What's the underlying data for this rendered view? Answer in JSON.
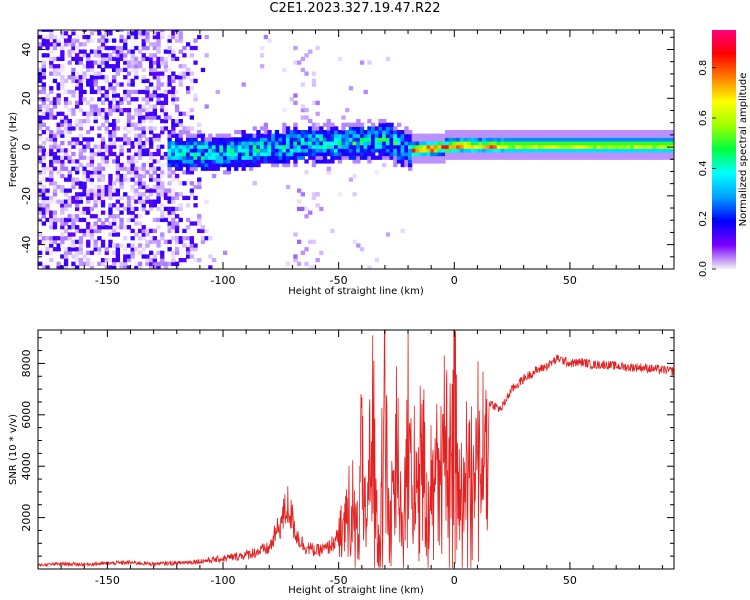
{
  "title": "C2E1.2023.327.19.47.R22",
  "chart_data": [
    {
      "type": "heatmap",
      "xlabel": "Height of straight line (km)",
      "ylabel": "Frequency (Hz)",
      "xlim": [
        -180,
        95
      ],
      "ylim": [
        -50,
        48
      ],
      "xticks": [
        -150,
        -100,
        -50,
        0,
        50
      ],
      "yticks": [
        -40,
        -20,
        0,
        20,
        40
      ],
      "colorbar": {
        "label": "Normalized spectral amplitude",
        "range": [
          0.0,
          0.95
        ],
        "ticks": [
          "0.0",
          "0.2",
          "0.4",
          "0.6",
          "0.8"
        ],
        "colors": [
          "#f2f2f2",
          "#7a00ff",
          "#0000ff",
          "#00a0ff",
          "#00ffff",
          "#00ff40",
          "#a0ff00",
          "#ffff00",
          "#ff8000",
          "#ff0000",
          "#ff0080"
        ]
      },
      "features": {
        "noise_region_x": [
          -180,
          -110
        ],
        "vertical_streak_x": [
          -70,
          -60
        ],
        "signal_start_x": -125,
        "signal_center_hz": [
          {
            "x": -125,
            "y": -3
          },
          {
            "x": -100,
            "y": -3
          },
          {
            "x": -75,
            "y": 0
          },
          {
            "x": -50,
            "y": 1
          },
          {
            "x": -30,
            "y": 2
          },
          {
            "x": -20,
            "y": -2
          },
          {
            "x": 0,
            "y": 0
          },
          {
            "x": 95,
            "y": 0
          }
        ]
      }
    },
    {
      "type": "line",
      "xlabel": "Height of straight line (km)",
      "ylabel": "SNR (10 * v/v)",
      "xlim": [
        -180,
        95
      ],
      "ylim": [
        0,
        9300
      ],
      "xticks": [
        -150,
        -100,
        -50,
        0,
        50
      ],
      "yticks": [
        2000,
        4000,
        6000,
        8000
      ],
      "color": "#e32121",
      "series": [
        {
          "x": [
            -180,
            -170,
            -160,
            -150,
            -140,
            -130,
            -120,
            -110,
            -100,
            -90,
            -80,
            -75,
            -72,
            -68,
            -65,
            -60,
            -55,
            -50,
            -45,
            -42,
            -40,
            -38,
            -35,
            -33,
            -30,
            -28,
            -25,
            -22,
            -20,
            -18,
            -15,
            -12,
            -10,
            -8,
            -5,
            -2,
            0,
            2,
            5,
            8,
            10,
            12,
            15,
            20,
            25,
            30,
            35,
            40,
            45,
            50,
            55,
            60,
            65,
            70,
            75,
            80,
            85,
            90,
            95
          ],
          "y": [
            150,
            200,
            180,
            220,
            250,
            200,
            230,
            300,
            400,
            550,
            800,
            1800,
            2500,
            1300,
            900,
            700,
            800,
            1200,
            3200,
            1800,
            5800,
            1200,
            8500,
            700,
            8900,
            1400,
            6000,
            1200,
            8200,
            3100,
            7000,
            2500,
            3800,
            5200,
            6500,
            4500,
            9300,
            3000,
            6200,
            4500,
            6700,
            4800,
            6500,
            6200,
            7000,
            7400,
            7700,
            7900,
            8200,
            8000,
            8050,
            7950,
            7950,
            7900,
            7850,
            7850,
            7800,
            7750,
            7700
          ]
        }
      ]
    }
  ]
}
